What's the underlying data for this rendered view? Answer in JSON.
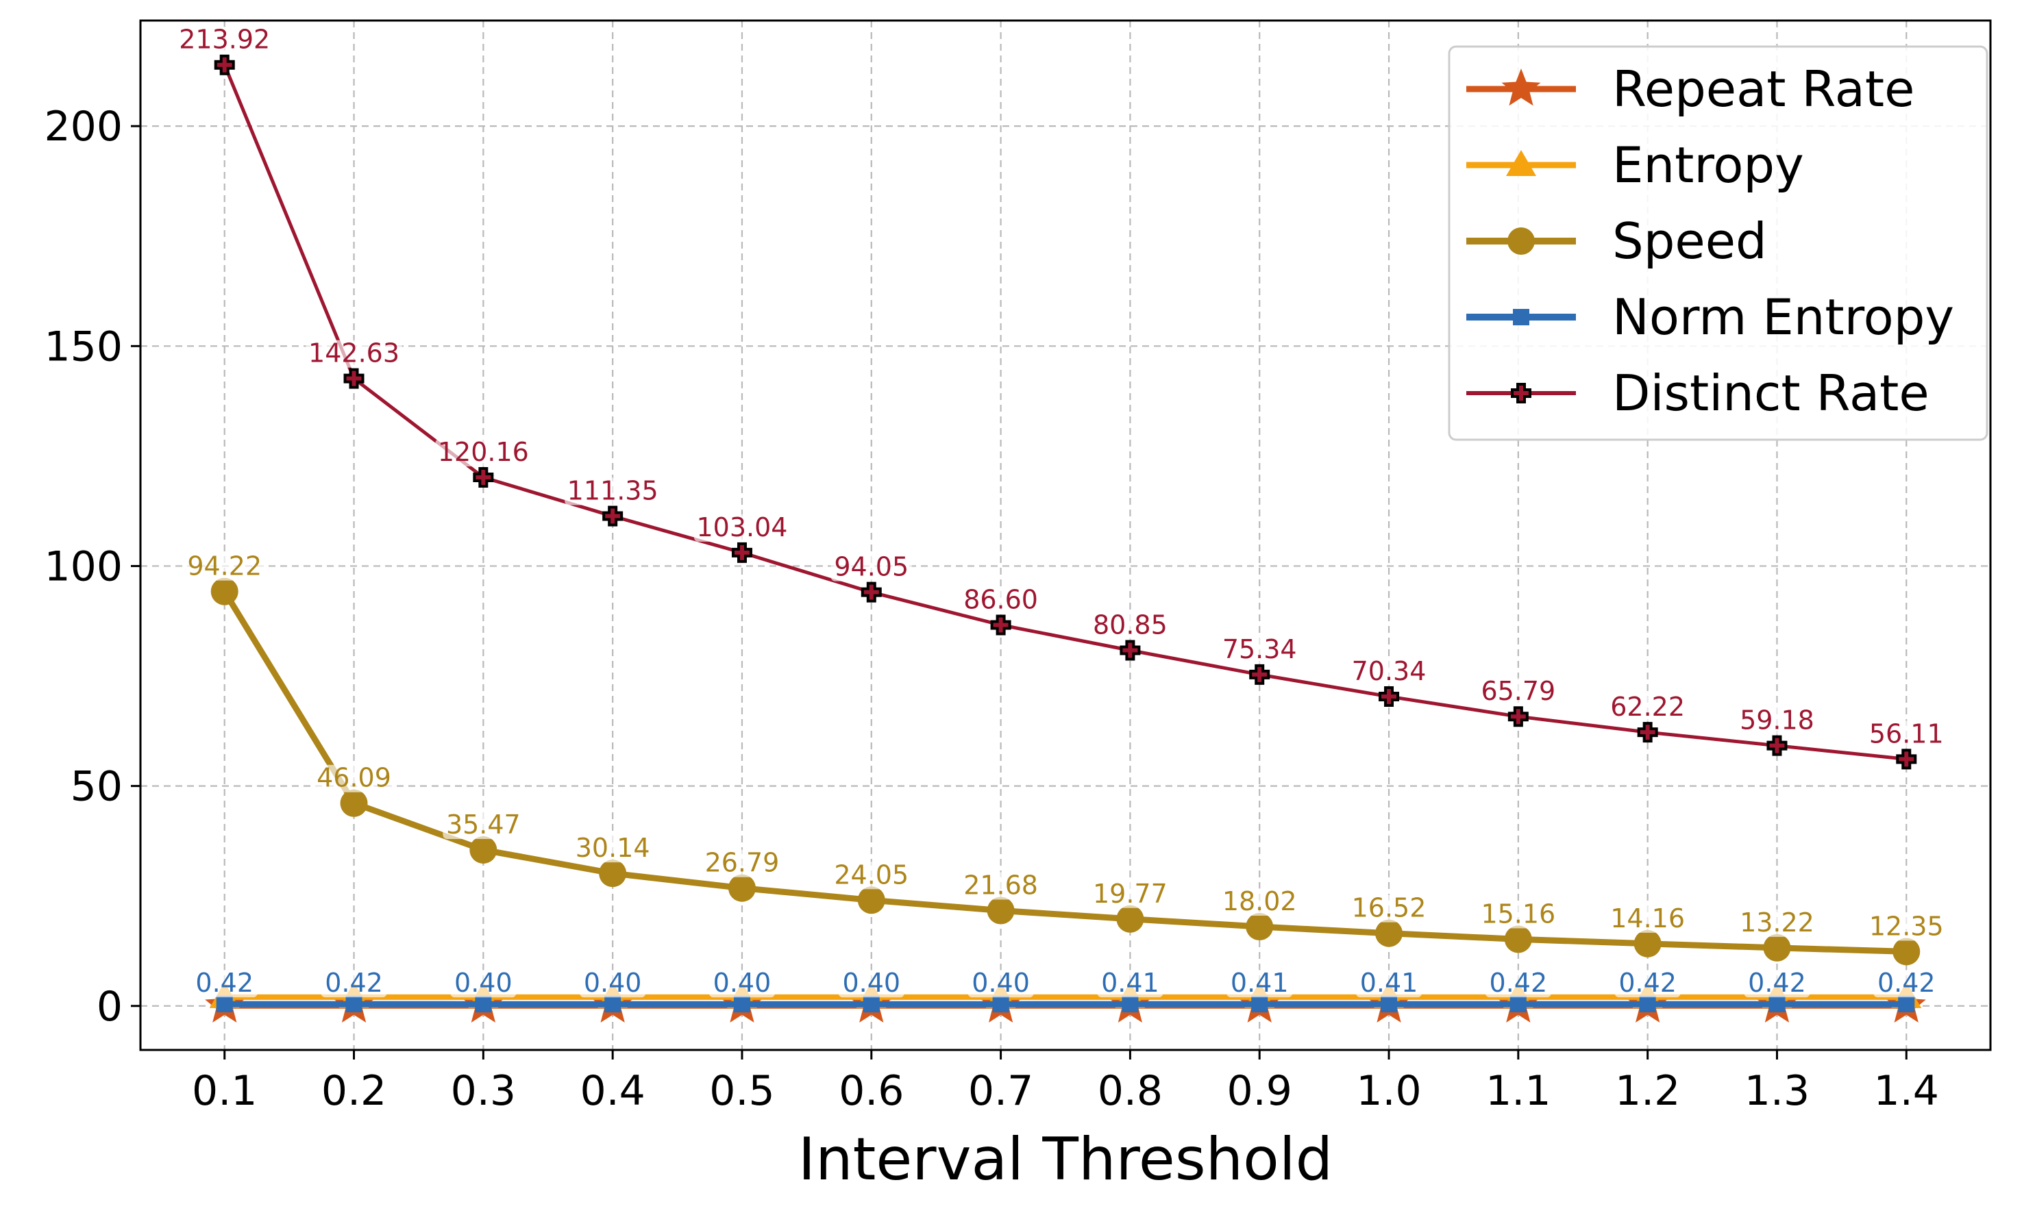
{
  "chart_data": {
    "type": "line",
    "title": "",
    "xlabel": "Interval Threshold",
    "ylabel": "",
    "x": [
      0.1,
      0.2,
      0.3,
      0.4,
      0.5,
      0.6,
      0.7,
      0.8,
      0.9,
      1.0,
      1.1,
      1.2,
      1.3,
      1.4
    ],
    "x_tick_labels": [
      "0.1",
      "0.2",
      "0.3",
      "0.4",
      "0.5",
      "0.6",
      "0.7",
      "0.8",
      "0.9",
      "1.0",
      "1.1",
      "1.2",
      "1.3",
      "1.4"
    ],
    "y_ticks": [
      0,
      50,
      100,
      150,
      200
    ],
    "y_tick_labels": [
      "0",
      "50",
      "100",
      "150",
      "200"
    ],
    "ylim": [
      -10,
      224
    ],
    "grid": true,
    "legend_position": "top-right",
    "series": [
      {
        "name": "Repeat Rate",
        "color": "#D4561A",
        "marker": "star",
        "values": [
          0,
          0,
          0,
          0,
          0,
          0,
          0,
          0,
          0,
          0,
          0,
          0,
          0,
          0
        ],
        "labels": []
      },
      {
        "name": "Entropy",
        "color": "#F5A30F",
        "marker": "triangle",
        "values": [
          2,
          2,
          2,
          2,
          2,
          2,
          2,
          2,
          2,
          2,
          2,
          2,
          2,
          2
        ],
        "labels": []
      },
      {
        "name": "Speed",
        "color": "#AD8519",
        "marker": "circle",
        "values": [
          94.22,
          46.09,
          35.47,
          30.14,
          26.79,
          24.05,
          21.68,
          19.77,
          18.02,
          16.52,
          15.16,
          14.16,
          13.22,
          12.35
        ],
        "labels": [
          "94.22",
          "46.09",
          "35.47",
          "30.14",
          "26.79",
          "24.05",
          "21.68",
          "19.77",
          "18.02",
          "16.52",
          "15.16",
          "14.16",
          "13.22",
          "12.35"
        ]
      },
      {
        "name": "Norm Entropy",
        "color": "#2E6DB4",
        "marker": "square",
        "values": [
          0.42,
          0.42,
          0.4,
          0.4,
          0.4,
          0.4,
          0.4,
          0.41,
          0.41,
          0.41,
          0.42,
          0.42,
          0.42,
          0.42
        ],
        "labels": [
          "0.42",
          "0.42",
          "0.40",
          "0.40",
          "0.40",
          "0.40",
          "0.40",
          "0.41",
          "0.41",
          "0.41",
          "0.42",
          "0.42",
          "0.42",
          "0.42"
        ]
      },
      {
        "name": "Distinct Rate",
        "color": "#9E1630",
        "marker": "plus",
        "values": [
          213.92,
          142.63,
          120.16,
          111.35,
          103.04,
          94.05,
          86.6,
          80.85,
          75.34,
          70.34,
          65.79,
          62.22,
          59.18,
          56.11
        ],
        "labels": [
          "213.92",
          "142.63",
          "120.16",
          "111.35",
          "103.04",
          "94.05",
          "86.60",
          "80.85",
          "75.34",
          "70.34",
          "65.79",
          "62.22",
          "59.18",
          "56.11"
        ]
      }
    ]
  }
}
